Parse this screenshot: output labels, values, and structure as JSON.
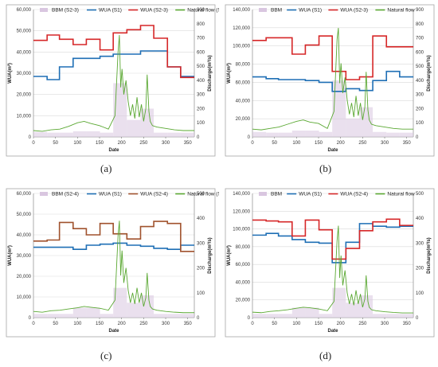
{
  "colors": {
    "bbm": "#d9c6e0",
    "wua_s1": "#1f6fb5",
    "wua_s2": "#d62728",
    "wua_s2_c": "#a0522d",
    "natural": "#5aa832",
    "grid": "#d9d9d9",
    "frame": "#a6a6a6"
  },
  "chart_data": [
    {
      "type": "line",
      "panel_label": "(a)",
      "xlabel": "Date",
      "ylabel_left": "WUA(m²)",
      "ylabel_right": "Discharge(m³/s)",
      "xlim": [
        0,
        365
      ],
      "ylim_left": [
        0,
        60000
      ],
      "ylim_right": [
        0,
        900
      ],
      "xticks": [
        "0",
        "50",
        "100",
        "150",
        "200",
        "250",
        "300",
        "350"
      ],
      "yticks_left": [
        "0",
        "10,000",
        "20,000",
        "30,000",
        "40,000",
        "50,000",
        "60,000"
      ],
      "yticks_right": [
        "0",
        "100",
        "200",
        "300",
        "400",
        "500",
        "600",
        "700",
        "800",
        "900"
      ],
      "legend": [
        "BBM (S2-3)",
        "WUA (S1)",
        "WUA (S2-3)",
        "Natural flow (S1)"
      ],
      "series": [
        {
          "name": "WUA (S1)",
          "axis": "left",
          "kind": "step",
          "x": [
            0,
            31,
            59,
            90,
            120,
            151,
            181,
            212,
            243,
            273,
            304,
            334,
            365
          ],
          "y": [
            28500,
            27000,
            33000,
            37000,
            37000,
            38000,
            39000,
            39000,
            40500,
            40500,
            33000,
            28500,
            28500
          ]
        },
        {
          "name": "WUA (S2-3)",
          "axis": "left",
          "kind": "step",
          "x": [
            0,
            31,
            59,
            90,
            120,
            151,
            181,
            212,
            243,
            273,
            304,
            334,
            365
          ],
          "y": [
            45500,
            48000,
            46000,
            43500,
            46000,
            41000,
            49000,
            50500,
            52500,
            46500,
            33000,
            28000,
            28000
          ]
        },
        {
          "name": "Natural flow (S1)",
          "axis": "right",
          "kind": "line",
          "x": [
            0,
            20,
            40,
            60,
            80,
            100,
            115,
            130,
            150,
            170,
            185,
            192,
            195,
            198,
            201,
            205,
            210,
            215,
            220,
            225,
            230,
            235,
            240,
            245,
            250,
            255,
            258,
            262,
            265,
            270,
            280,
            300,
            320,
            340,
            365
          ],
          "y": [
            45,
            40,
            50,
            55,
            75,
            100,
            110,
            95,
            80,
            55,
            150,
            600,
            720,
            350,
            480,
            300,
            400,
            250,
            150,
            230,
            130,
            280,
            140,
            230,
            110,
            200,
            440,
            180,
            110,
            80,
            70,
            60,
            50,
            45,
            45
          ]
        },
        {
          "name": "BBM (S2-3)",
          "axis": "right",
          "kind": "bar",
          "x": [
            0,
            31,
            59,
            90,
            120,
            151,
            181,
            212,
            243,
            273,
            304,
            334,
            365
          ],
          "y": [
            35,
            30,
            30,
            40,
            40,
            30,
            380,
            120,
            200,
            30,
            30,
            30,
            30
          ]
        }
      ]
    },
    {
      "type": "line",
      "panel_label": "(b)",
      "xlabel": "Date",
      "ylabel_left": "WUA(m²)",
      "ylabel_right": "Discharge(m³/s)",
      "xlim": [
        0,
        365
      ],
      "ylim_left": [
        0,
        140000
      ],
      "ylim_right": [
        0,
        900
      ],
      "xticks": [
        "0",
        "50",
        "100",
        "150",
        "200",
        "250",
        "300",
        "350"
      ],
      "yticks_left": [
        "0",
        "20,000",
        "40,000",
        "60,000",
        "80,000",
        "100,000",
        "120,000",
        "140,000"
      ],
      "yticks_right": [
        "0",
        "100",
        "200",
        "300",
        "400",
        "500",
        "600",
        "700",
        "800",
        "900"
      ],
      "legend": [
        "BBM",
        "WUA (S1)",
        "WUA (S2-3)",
        "Natural flow"
      ],
      "series": [
        {
          "name": "WUA (S1)",
          "axis": "left",
          "kind": "step",
          "x": [
            0,
            31,
            59,
            90,
            120,
            151,
            181,
            212,
            243,
            273,
            304,
            334,
            365
          ],
          "y": [
            66000,
            64000,
            63000,
            63000,
            62000,
            60000,
            50000,
            53000,
            51000,
            62000,
            72000,
            66000,
            66000
          ]
        },
        {
          "name": "WUA (S2-3)",
          "axis": "left",
          "kind": "step",
          "x": [
            0,
            31,
            59,
            90,
            120,
            151,
            181,
            212,
            243,
            273,
            304,
            334,
            365
          ],
          "y": [
            106000,
            109000,
            109000,
            91000,
            101000,
            111000,
            72000,
            63000,
            66000,
            111000,
            99000,
            99000,
            99000
          ]
        },
        {
          "name": "Natural flow",
          "axis": "right",
          "kind": "line",
          "x": [
            0,
            20,
            40,
            60,
            80,
            100,
            115,
            130,
            150,
            170,
            185,
            192,
            195,
            198,
            201,
            205,
            210,
            215,
            220,
            225,
            230,
            235,
            240,
            245,
            250,
            255,
            258,
            262,
            265,
            270,
            280,
            300,
            320,
            340,
            365
          ],
          "y": [
            55,
            50,
            60,
            70,
            90,
            110,
            120,
            105,
            95,
            60,
            180,
            690,
            770,
            380,
            520,
            310,
            420,
            260,
            160,
            240,
            140,
            290,
            150,
            240,
            120,
            210,
            460,
            190,
            120,
            90,
            80,
            70,
            60,
            55,
            55
          ]
        },
        {
          "name": "BBM",
          "axis": "right",
          "kind": "bar",
          "x": [
            0,
            31,
            59,
            90,
            120,
            151,
            181,
            212,
            243,
            273,
            304,
            334,
            365
          ],
          "y": [
            35,
            30,
            30,
            45,
            45,
            35,
            400,
            130,
            210,
            35,
            30,
            30,
            30
          ]
        }
      ]
    },
    {
      "type": "line",
      "panel_label": "(c)",
      "xlabel": "Date",
      "ylabel_left": "WUA(m²)",
      "ylabel_right": "Discharge(m³/s)",
      "xlim": [
        0,
        365
      ],
      "ylim_left": [
        0,
        60000
      ],
      "ylim_right": [
        0,
        500
      ],
      "xticks": [
        "0",
        "50",
        "100",
        "150",
        "200",
        "250",
        "300",
        "350"
      ],
      "yticks_left": [
        "0",
        "10,000",
        "20,000",
        "30,000",
        "40,000",
        "50,000",
        "60,000"
      ],
      "yticks_right": [
        "0",
        "100",
        "200",
        "300",
        "400",
        "500"
      ],
      "legend": [
        "BBM (S2-4)",
        "WUA (S1)",
        "WUA (S2-4)",
        "Natural flow (S1)"
      ],
      "series": [
        {
          "name": "WUA (S1)",
          "axis": "left",
          "kind": "step",
          "x": [
            0,
            31,
            59,
            90,
            120,
            151,
            181,
            212,
            243,
            273,
            304,
            334,
            365
          ],
          "y": [
            34000,
            34000,
            34000,
            33000,
            35000,
            35500,
            36000,
            35000,
            34500,
            33500,
            33000,
            35000,
            35000
          ]
        },
        {
          "name": "WUA (S2-4)",
          "axis": "left",
          "kind": "step",
          "x": [
            0,
            31,
            59,
            90,
            120,
            151,
            181,
            212,
            243,
            273,
            304,
            334,
            365
          ],
          "y": [
            37000,
            37500,
            46000,
            43000,
            40000,
            45500,
            40500,
            38000,
            44000,
            46500,
            45500,
            32000,
            32000
          ]
        },
        {
          "name": "Natural flow (S1)",
          "axis": "right",
          "kind": "line",
          "x": [
            0,
            20,
            40,
            60,
            80,
            100,
            115,
            130,
            150,
            170,
            185,
            192,
            195,
            198,
            201,
            205,
            210,
            215,
            220,
            225,
            230,
            235,
            240,
            245,
            250,
            255,
            258,
            262,
            265,
            270,
            280,
            300,
            320,
            340,
            365
          ],
          "y": [
            25,
            22,
            28,
            30,
            35,
            40,
            45,
            42,
            38,
            30,
            70,
            330,
            390,
            170,
            270,
            140,
            200,
            110,
            60,
            100,
            55,
            120,
            60,
            100,
            45,
            80,
            180,
            70,
            45,
            35,
            30,
            25,
            22,
            20,
            20
          ]
        },
        {
          "name": "BBM (S2-4)",
          "axis": "right",
          "kind": "bar",
          "x": [
            0,
            31,
            59,
            90,
            120,
            151,
            181,
            212,
            243,
            273,
            304,
            334,
            365
          ],
          "y": [
            15,
            15,
            15,
            40,
            40,
            15,
            120,
            60,
            90,
            15,
            15,
            15,
            15
          ]
        }
      ]
    },
    {
      "type": "line",
      "panel_label": "(d)",
      "xlabel": "Date",
      "ylabel_left": "WUA(m²)",
      "ylabel_right": "Discharge(m³/s)",
      "xlim": [
        0,
        365
      ],
      "ylim_left": [
        0,
        140000
      ],
      "ylim_right": [
        0,
        500
      ],
      "xticks": [
        "0",
        "50",
        "100",
        "150",
        "200",
        "250",
        "300",
        "350"
      ],
      "yticks_left": [
        "0",
        "20,000",
        "40,000",
        "60,000",
        "80,000",
        "100,000",
        "120,000",
        "140,000"
      ],
      "yticks_right": [
        "0",
        "100",
        "200",
        "300",
        "400",
        "500"
      ],
      "legend": [
        "BBM",
        "WUA (S1)",
        "WUA (S2-4)",
        "Natural flow"
      ],
      "series": [
        {
          "name": "WUA (S1)",
          "axis": "left",
          "kind": "step",
          "x": [
            0,
            31,
            59,
            90,
            120,
            151,
            181,
            212,
            243,
            273,
            304,
            334,
            365
          ],
          "y": [
            93000,
            95000,
            92000,
            88000,
            85000,
            84000,
            62000,
            85000,
            106000,
            103000,
            102000,
            103000,
            103000
          ]
        },
        {
          "name": "WUA (S2-4)",
          "axis": "left",
          "kind": "step",
          "x": [
            0,
            31,
            59,
            90,
            120,
            151,
            181,
            212,
            243,
            273,
            304,
            334,
            365
          ],
          "y": [
            110000,
            109000,
            108000,
            92000,
            110000,
            99000,
            66000,
            78000,
            98000,
            108000,
            111000,
            104000,
            104000
          ]
        },
        {
          "name": "Natural flow",
          "axis": "right",
          "kind": "line",
          "x": [
            0,
            20,
            40,
            60,
            80,
            100,
            115,
            130,
            150,
            170,
            185,
            192,
            195,
            198,
            201,
            205,
            210,
            215,
            220,
            225,
            230,
            235,
            240,
            245,
            250,
            255,
            258,
            262,
            265,
            270,
            280,
            300,
            320,
            340,
            365
          ],
          "y": [
            22,
            20,
            25,
            28,
            32,
            38,
            42,
            40,
            35,
            28,
            65,
            310,
            370,
            160,
            250,
            130,
            190,
            100,
            55,
            95,
            50,
            110,
            55,
            95,
            42,
            75,
            170,
            65,
            42,
            32,
            28,
            24,
            21,
            19,
            19
          ]
        },
        {
          "name": "BBM",
          "axis": "right",
          "kind": "bar",
          "x": [
            0,
            31,
            59,
            90,
            120,
            151,
            181,
            212,
            243,
            273,
            304,
            334,
            365
          ],
          "y": [
            15,
            15,
            15,
            40,
            40,
            15,
            120,
            60,
            90,
            15,
            15,
            15,
            15
          ]
        }
      ]
    }
  ]
}
